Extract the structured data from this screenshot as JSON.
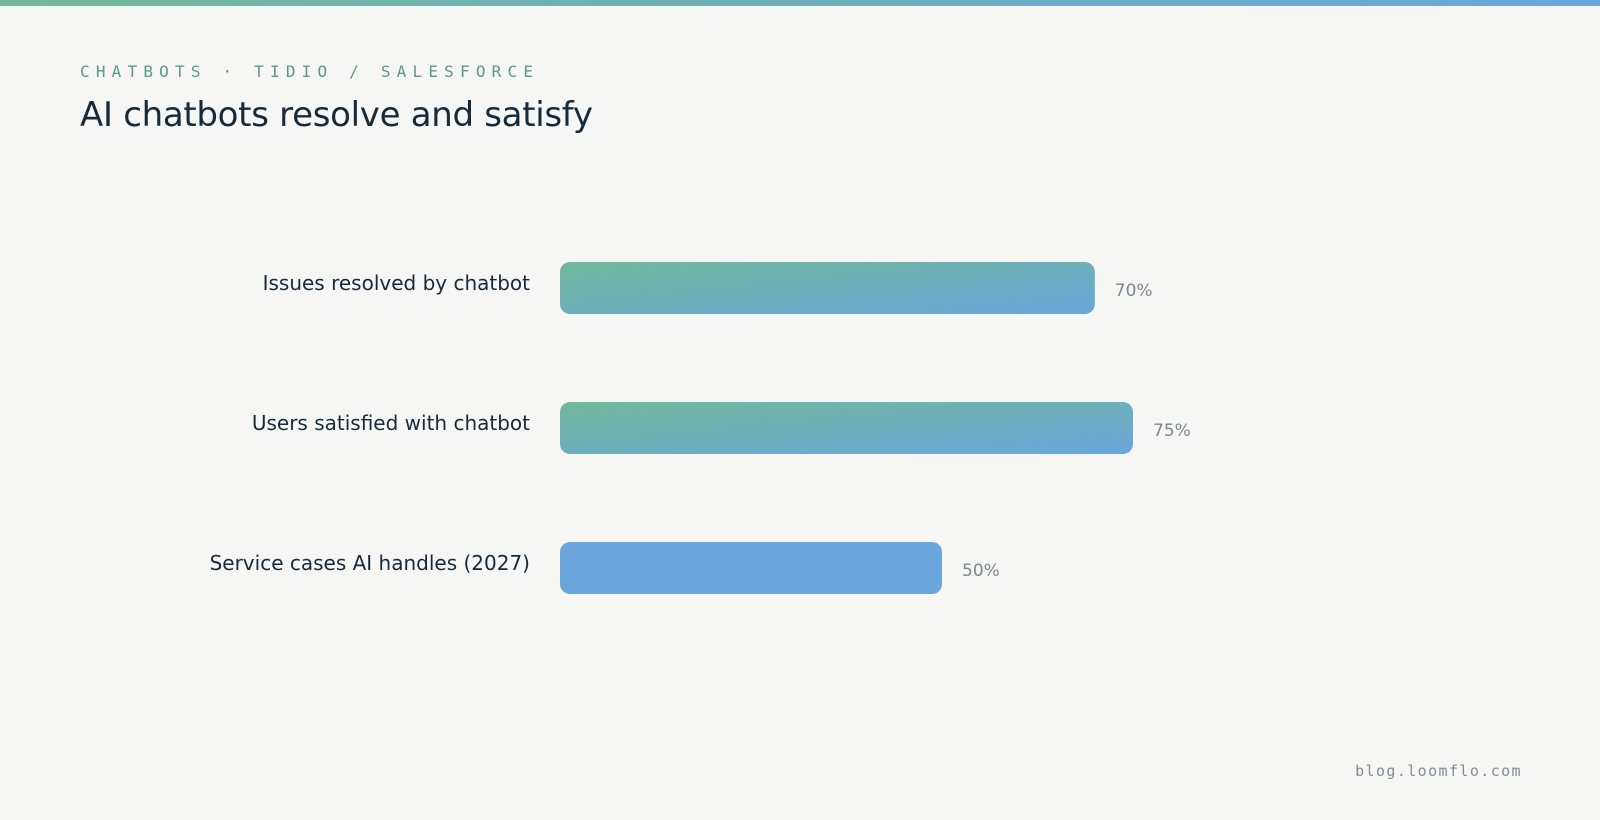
{
  "header": {
    "eyebrow": "CHATBOTS · TIDIO / SALESFORCE",
    "title": "AI chatbots resolve and satisfy"
  },
  "footer": {
    "source": "blog.loomflo.com"
  },
  "colors": {
    "background": "#f6f6f4",
    "accent_green": "#71b89a",
    "accent_blue": "#6aa6db",
    "text_dark": "#172a3a",
    "value_gray": "#7c8792"
  },
  "chart_data": {
    "type": "bar",
    "orientation": "horizontal",
    "categories": [
      "Issues resolved by chatbot",
      "Users satisfied with chatbot",
      "Service cases AI handles (2027)"
    ],
    "values": [
      70,
      75,
      50
    ],
    "value_labels": [
      "70%",
      "75%",
      "50%"
    ],
    "title": "",
    "xlabel": "",
    "ylabel": "",
    "xlim": [
      0,
      100
    ],
    "grid": false,
    "legend": "none"
  }
}
